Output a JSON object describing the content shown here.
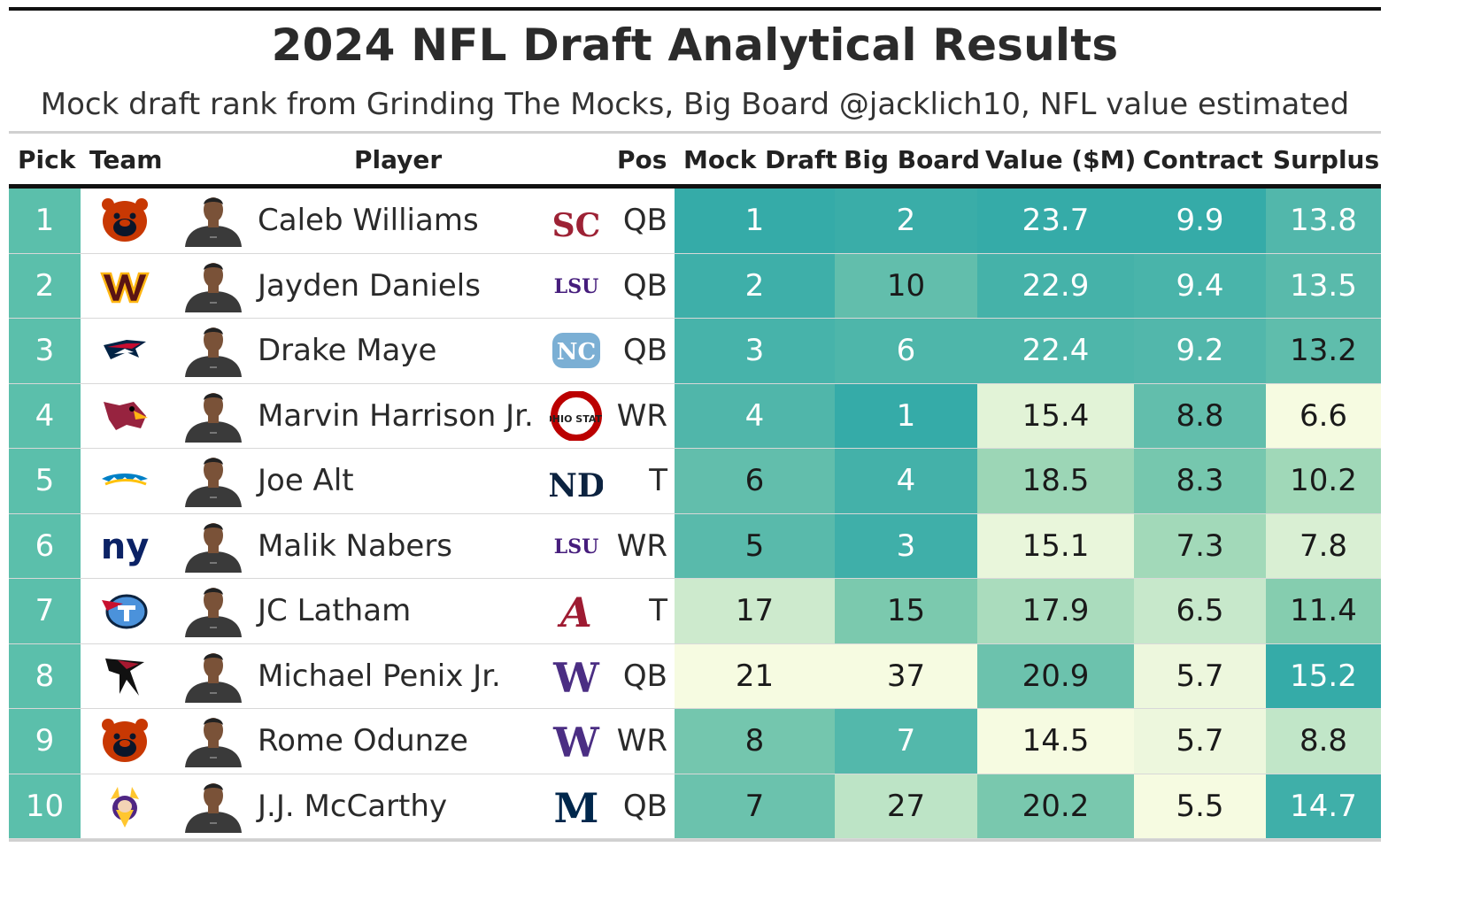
{
  "title": "2024 NFL Draft Analytical Results",
  "subtitle": "Mock draft rank from Grinding The Mocks, Big Board @jacklich10, NFL value estimated",
  "headers": {
    "pick": "Pick",
    "team": "Team",
    "player": "Player",
    "pos": "Pos",
    "mock": "Mock Draft",
    "board": "Big Board",
    "value": "Value ($M)",
    "contract": "Contract",
    "surplus": "Surplus"
  },
  "colors": {
    "low": "#f6fbe1",
    "mid": "#8fd1b0",
    "high": "#35aba8",
    "pick_col": "#5bbfab"
  },
  "chart_data": {
    "type": "table",
    "columns": [
      "Pick",
      "Team",
      "Player",
      "Pos",
      "Mock Draft",
      "Big Board",
      "Value ($M)",
      "Contract",
      "Surplus"
    ],
    "rows": [
      {
        "pick": "1",
        "team_icon": "bears-logo",
        "player": "Caleb Williams",
        "college_icon": "usc-logo",
        "college_mark": "SC",
        "college_color": "#9d2235",
        "pos": "QB",
        "mock": 1,
        "board": 2,
        "value": "23.7",
        "contract": "9.9",
        "surplus": "13.8"
      },
      {
        "pick": "2",
        "team_icon": "commanders-logo",
        "player": "Jayden Daniels",
        "college_icon": "lsu-logo",
        "college_mark": "LSU",
        "college_color": "#461d7c",
        "pos": "QB",
        "mock": 2,
        "board": 10,
        "value": "22.9",
        "contract": "9.4",
        "surplus": "13.5"
      },
      {
        "pick": "3",
        "team_icon": "patriots-logo",
        "player": "Drake Maye",
        "college_icon": "unc-logo",
        "college_mark": "NC",
        "college_color": "#7bafd4",
        "pos": "QB",
        "mock": 3,
        "board": 6,
        "value": "22.4",
        "contract": "9.2",
        "surplus": "13.2"
      },
      {
        "pick": "4",
        "team_icon": "cardinals-logo",
        "player": "Marvin Harrison Jr.",
        "college_icon": "ohio-state-logo",
        "college_mark": "OHIO STATE",
        "college_color": "#bb0000",
        "pos": "WR",
        "mock": 4,
        "board": 1,
        "value": "15.4",
        "contract": "8.8",
        "surplus": "6.6"
      },
      {
        "pick": "5",
        "team_icon": "chargers-logo",
        "player": "Joe Alt",
        "college_icon": "notre-dame-logo",
        "college_mark": "ND",
        "college_color": "#0c2340",
        "pos": "T",
        "mock": 6,
        "board": 4,
        "value": "18.5",
        "contract": "8.3",
        "surplus": "10.2"
      },
      {
        "pick": "6",
        "team_icon": "giants-logo",
        "player": "Malik Nabers",
        "college_icon": "lsu-logo",
        "college_mark": "LSU",
        "college_color": "#461d7c",
        "pos": "WR",
        "mock": 5,
        "board": 3,
        "value": "15.1",
        "contract": "7.3",
        "surplus": "7.8"
      },
      {
        "pick": "7",
        "team_icon": "titans-logo",
        "player": "JC Latham",
        "college_icon": "alabama-logo",
        "college_mark": "A",
        "college_color": "#9e1b32",
        "pos": "T",
        "mock": 17,
        "board": 15,
        "value": "17.9",
        "contract": "6.5",
        "surplus": "11.4"
      },
      {
        "pick": "8",
        "team_icon": "falcons-logo",
        "player": "Michael Penix Jr.",
        "college_icon": "washington-logo",
        "college_mark": "W",
        "college_color": "#4b2e83",
        "pos": "QB",
        "mock": 21,
        "board": 37,
        "value": "20.9",
        "contract": "5.7",
        "surplus": "15.2"
      },
      {
        "pick": "9",
        "team_icon": "bears-logo",
        "player": "Rome Odunze",
        "college_icon": "washington-logo",
        "college_mark": "W",
        "college_color": "#4b2e83",
        "pos": "WR",
        "mock": 8,
        "board": 7,
        "value": "14.5",
        "contract": "5.7",
        "surplus": "8.8"
      },
      {
        "pick": "10",
        "team_icon": "vikings-logo",
        "player": "J.J. McCarthy",
        "college_icon": "michigan-logo",
        "college_mark": "M",
        "college_color": "#00274c",
        "pos": "QB",
        "mock": 7,
        "board": 27,
        "value": "20.2",
        "contract": "5.5",
        "surplus": "14.7"
      }
    ]
  }
}
